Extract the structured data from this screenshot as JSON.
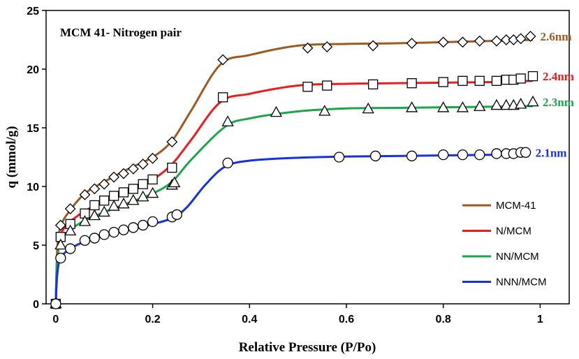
{
  "chart_data": {
    "type": "line",
    "title": "MCM 41- Nitrogen pair",
    "xlabel": "Relative Pressure (P/Po)",
    "ylabel": "q (mmol/g)",
    "xlim": [
      -0.02,
      1.06
    ],
    "ylim": [
      0,
      25
    ],
    "xticks": [
      0,
      0.2,
      0.4,
      0.6,
      0.8,
      1
    ],
    "xtick_labels": [
      "0",
      "0.2",
      "0.4",
      "0.6",
      "0.8",
      "1"
    ],
    "yticks": [
      0,
      5,
      10,
      15,
      20,
      25
    ],
    "ytick_labels": [
      "0",
      "5",
      "10",
      "15",
      "20",
      "25"
    ],
    "legend_position": "bottom-right",
    "series": [
      {
        "name": "MCM-41",
        "color": "#9c5a1e",
        "marker": "diamond",
        "pore_label": "2.6nm",
        "curve": [
          [
            0,
            0
          ],
          [
            0.003,
            4.5
          ],
          [
            0.01,
            6.6
          ],
          [
            0.03,
            8.0
          ],
          [
            0.06,
            9.4
          ],
          [
            0.1,
            10.4
          ],
          [
            0.15,
            11.5
          ],
          [
            0.2,
            12.5
          ],
          [
            0.24,
            13.9
          ],
          [
            0.28,
            16.5
          ],
          [
            0.34,
            20.4
          ],
          [
            0.4,
            21.2
          ],
          [
            0.5,
            22.0
          ],
          [
            0.6,
            22.15
          ],
          [
            0.7,
            22.2
          ],
          [
            0.8,
            22.3
          ],
          [
            0.9,
            22.4
          ],
          [
            0.985,
            22.5
          ]
        ],
        "points": [
          [
            0,
            0
          ],
          [
            0.01,
            6.7
          ],
          [
            0.03,
            8.1
          ],
          [
            0.06,
            9.3
          ],
          [
            0.08,
            9.8
          ],
          [
            0.1,
            10.2
          ],
          [
            0.12,
            10.8
          ],
          [
            0.14,
            11.1
          ],
          [
            0.16,
            11.5
          ],
          [
            0.18,
            11.9
          ],
          [
            0.2,
            12.4
          ],
          [
            0.24,
            13.8
          ],
          [
            0.345,
            20.8
          ],
          [
            0.52,
            21.8
          ],
          [
            0.56,
            21.9
          ],
          [
            0.655,
            22.0
          ],
          [
            0.735,
            22.2
          ],
          [
            0.8,
            22.3
          ],
          [
            0.84,
            22.3
          ],
          [
            0.875,
            22.4
          ],
          [
            0.91,
            22.4
          ],
          [
            0.93,
            22.5
          ],
          [
            0.945,
            22.5
          ],
          [
            0.96,
            22.6
          ],
          [
            0.98,
            22.8
          ]
        ]
      },
      {
        "name": "N/MCM",
        "color": "#ee1c1c",
        "marker": "square",
        "pore_label": "2.4nm",
        "curve": [
          [
            0,
            0
          ],
          [
            0.003,
            4.0
          ],
          [
            0.01,
            5.9
          ],
          [
            0.03,
            7.0
          ],
          [
            0.06,
            7.9
          ],
          [
            0.1,
            8.8
          ],
          [
            0.15,
            9.7
          ],
          [
            0.2,
            10.6
          ],
          [
            0.24,
            11.9
          ],
          [
            0.28,
            14.0
          ],
          [
            0.34,
            17.2
          ],
          [
            0.4,
            17.9
          ],
          [
            0.5,
            18.6
          ],
          [
            0.6,
            18.75
          ],
          [
            0.7,
            18.8
          ],
          [
            0.8,
            18.85
          ],
          [
            0.9,
            18.9
          ],
          [
            0.985,
            19.0
          ]
        ],
        "points": [
          [
            0,
            0
          ],
          [
            0.01,
            5.7
          ],
          [
            0.03,
            6.8
          ],
          [
            0.06,
            7.7
          ],
          [
            0.08,
            8.4
          ],
          [
            0.1,
            8.8
          ],
          [
            0.12,
            9.2
          ],
          [
            0.14,
            9.5
          ],
          [
            0.16,
            9.8
          ],
          [
            0.18,
            10.2
          ],
          [
            0.2,
            10.6
          ],
          [
            0.24,
            11.6
          ],
          [
            0.345,
            17.6
          ],
          [
            0.52,
            18.5
          ],
          [
            0.56,
            18.6
          ],
          [
            0.655,
            18.7
          ],
          [
            0.735,
            18.8
          ],
          [
            0.8,
            18.9
          ],
          [
            0.84,
            19.0
          ],
          [
            0.875,
            19.0
          ],
          [
            0.91,
            19.0
          ],
          [
            0.93,
            19.1
          ],
          [
            0.945,
            19.1
          ],
          [
            0.96,
            19.2
          ],
          [
            0.985,
            19.4
          ]
        ]
      },
      {
        "name": "NN/MCM",
        "color": "#1aa64a",
        "marker": "triangle",
        "pore_label": "2.3nm",
        "curve": [
          [
            0,
            0
          ],
          [
            0.003,
            3.6
          ],
          [
            0.01,
            5.3
          ],
          [
            0.03,
            6.3
          ],
          [
            0.06,
            7.1
          ],
          [
            0.1,
            7.8
          ],
          [
            0.15,
            8.6
          ],
          [
            0.2,
            9.4
          ],
          [
            0.24,
            10.4
          ],
          [
            0.28,
            12.3
          ],
          [
            0.35,
            15.1
          ],
          [
            0.4,
            15.8
          ],
          [
            0.5,
            16.4
          ],
          [
            0.6,
            16.65
          ],
          [
            0.7,
            16.7
          ],
          [
            0.8,
            16.75
          ],
          [
            0.9,
            16.8
          ],
          [
            0.985,
            16.85
          ]
        ],
        "points": [
          [
            0,
            0
          ],
          [
            0.01,
            5.0
          ],
          [
            0.03,
            6.2
          ],
          [
            0.06,
            7.0
          ],
          [
            0.08,
            7.5
          ],
          [
            0.1,
            7.8
          ],
          [
            0.12,
            8.3
          ],
          [
            0.14,
            8.5
          ],
          [
            0.16,
            8.8
          ],
          [
            0.18,
            9.1
          ],
          [
            0.2,
            9.4
          ],
          [
            0.24,
            10.1
          ],
          [
            0.245,
            10.3
          ],
          [
            0.355,
            15.5
          ],
          [
            0.455,
            16.3
          ],
          [
            0.555,
            16.4
          ],
          [
            0.645,
            16.6
          ],
          [
            0.735,
            16.7
          ],
          [
            0.8,
            16.7
          ],
          [
            0.84,
            16.7
          ],
          [
            0.875,
            16.8
          ],
          [
            0.91,
            16.9
          ],
          [
            0.93,
            16.9
          ],
          [
            0.945,
            16.9
          ],
          [
            0.96,
            17.0
          ],
          [
            0.985,
            17.2
          ]
        ]
      },
      {
        "name": "NNN/MCM",
        "color": "#1431e6",
        "marker": "circle",
        "pore_label": "2.1nm",
        "curve": [
          [
            0,
            0
          ],
          [
            0.003,
            2.5
          ],
          [
            0.01,
            3.9
          ],
          [
            0.03,
            4.7
          ],
          [
            0.06,
            5.3
          ],
          [
            0.1,
            5.8
          ],
          [
            0.15,
            6.3
          ],
          [
            0.2,
            6.8
          ],
          [
            0.24,
            7.3
          ],
          [
            0.27,
            8.2
          ],
          [
            0.31,
            10.2
          ],
          [
            0.35,
            11.7
          ],
          [
            0.4,
            12.2
          ],
          [
            0.5,
            12.45
          ],
          [
            0.6,
            12.55
          ],
          [
            0.7,
            12.6
          ],
          [
            0.8,
            12.65
          ],
          [
            0.9,
            12.7
          ],
          [
            0.97,
            12.75
          ]
        ],
        "points": [
          [
            0,
            0
          ],
          [
            0.01,
            3.9
          ],
          [
            0.03,
            4.7
          ],
          [
            0.06,
            5.4
          ],
          [
            0.08,
            5.6
          ],
          [
            0.1,
            5.9
          ],
          [
            0.12,
            6.1
          ],
          [
            0.14,
            6.3
          ],
          [
            0.16,
            6.5
          ],
          [
            0.18,
            6.7
          ],
          [
            0.2,
            7.0
          ],
          [
            0.24,
            7.4
          ],
          [
            0.25,
            7.6
          ],
          [
            0.355,
            12.0
          ],
          [
            0.585,
            12.5
          ],
          [
            0.66,
            12.6
          ],
          [
            0.735,
            12.6
          ],
          [
            0.8,
            12.7
          ],
          [
            0.84,
            12.7
          ],
          [
            0.875,
            12.7
          ],
          [
            0.91,
            12.8
          ],
          [
            0.93,
            12.8
          ],
          [
            0.945,
            12.8
          ],
          [
            0.96,
            12.9
          ],
          [
            0.97,
            12.9
          ]
        ]
      }
    ]
  }
}
